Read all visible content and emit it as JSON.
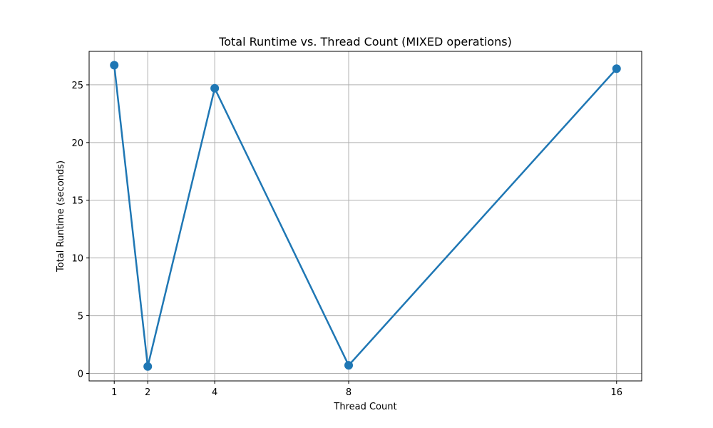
{
  "chart_data": {
    "type": "line",
    "title": "Total Runtime vs. Thread Count (MIXED operations)",
    "xlabel": "Thread Count",
    "ylabel": "Total Runtime (seconds)",
    "x": [
      1,
      2,
      4,
      8,
      16
    ],
    "x_tick_labels": [
      "1",
      "2",
      "4",
      "8",
      "16"
    ],
    "y_ticks": [
      0,
      5,
      10,
      15,
      20,
      25
    ],
    "y_tick_labels": [
      "0",
      "5",
      "10",
      "15",
      "20",
      "25"
    ],
    "xlim": [
      0.25,
      16.75
    ],
    "ylim": [
      -0.65,
      27.9
    ],
    "grid": true,
    "series": [
      {
        "values": [
          26.7,
          0.6,
          24.7,
          0.7,
          26.4
        ],
        "color": "#1f77b4"
      }
    ]
  }
}
